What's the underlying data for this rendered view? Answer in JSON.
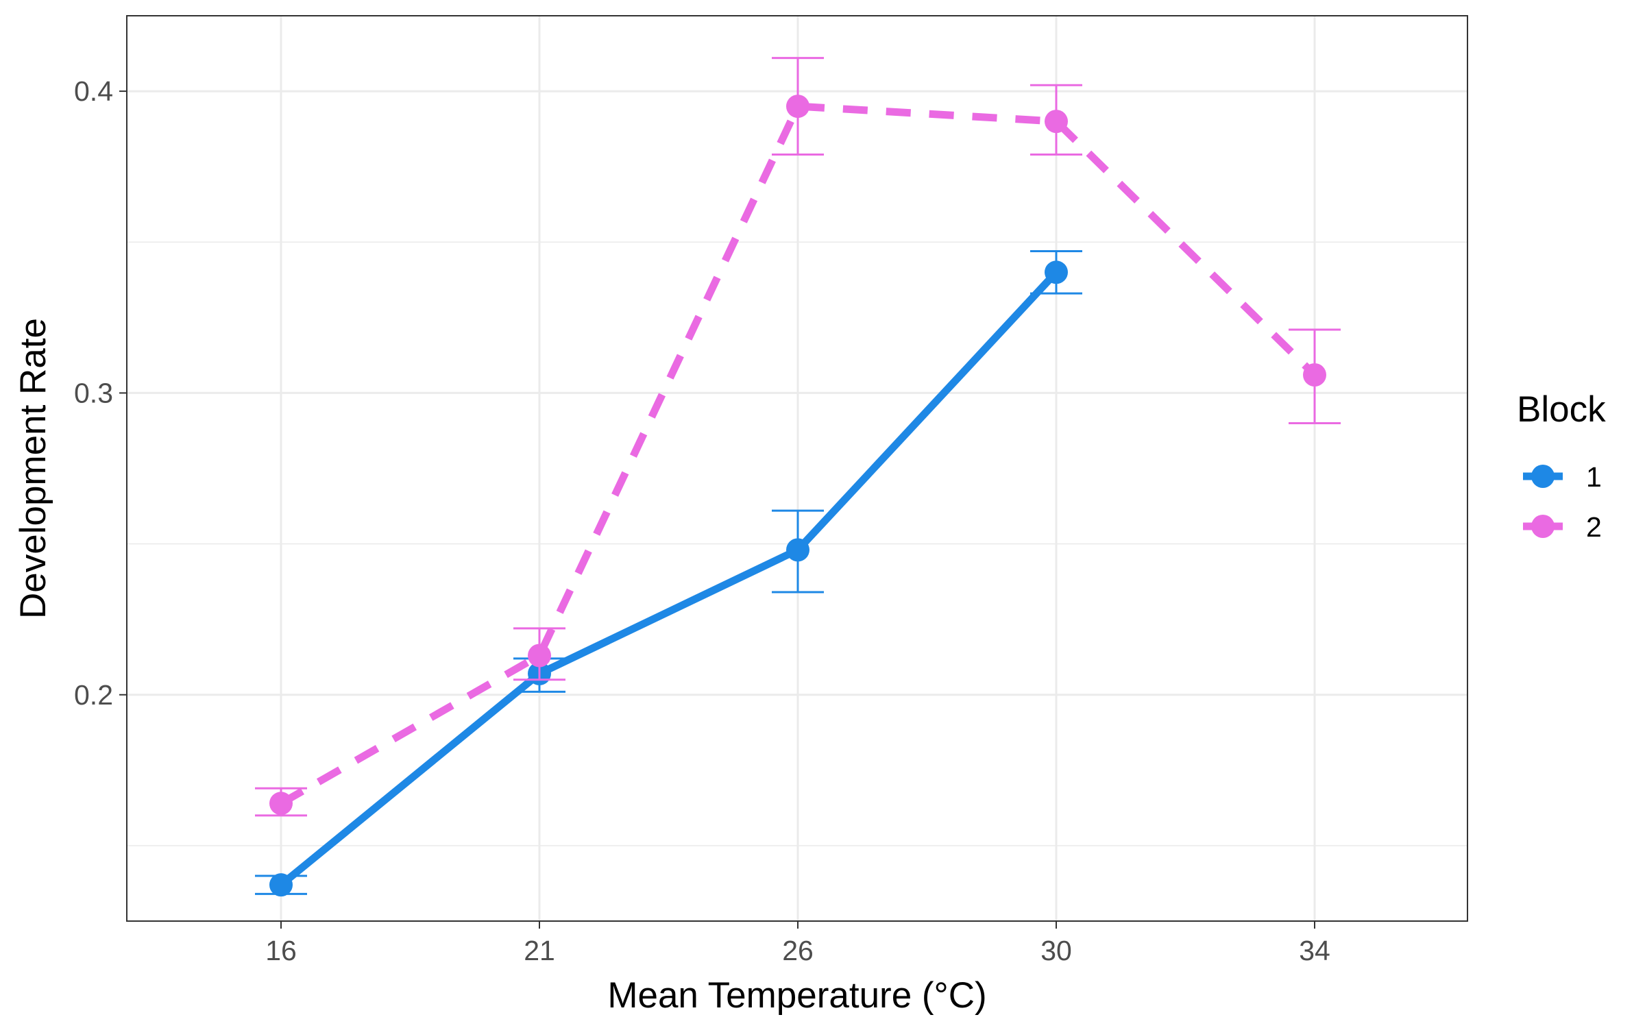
{
  "chart_data": {
    "type": "line",
    "xlabel": "Mean Temperature (°C)",
    "ylabel": "Development Rate",
    "x_categories": [
      "16",
      "21",
      "26",
      "30",
      "34"
    ],
    "ylim": [
      0.125,
      0.425
    ],
    "y_ticks": [
      0.2,
      0.3,
      0.4
    ],
    "y_tick_labels": [
      "0.2",
      "0.3",
      "0.4"
    ],
    "y_minor_ticks": [
      0.15,
      0.25,
      0.35
    ],
    "grid": true,
    "legend": {
      "title": "Block",
      "position": "right"
    },
    "series": [
      {
        "name": "1",
        "color": "#1e88e5",
        "linestyle": "solid",
        "points": [
          {
            "x": "16",
            "y": 0.137,
            "ymin": 0.134,
            "ymax": 0.14
          },
          {
            "x": "21",
            "y": 0.207,
            "ymin": 0.201,
            "ymax": 0.212
          },
          {
            "x": "26",
            "y": 0.248,
            "ymin": 0.234,
            "ymax": 0.261
          },
          {
            "x": "30",
            "y": 0.34,
            "ymin": 0.333,
            "ymax": 0.347
          }
        ]
      },
      {
        "name": "2",
        "color": "#ea6ae2",
        "linestyle": "dashed",
        "points": [
          {
            "x": "16",
            "y": 0.164,
            "ymin": 0.16,
            "ymax": 0.169
          },
          {
            "x": "21",
            "y": 0.213,
            "ymin": 0.205,
            "ymax": 0.222
          },
          {
            "x": "26",
            "y": 0.395,
            "ymin": 0.379,
            "ymax": 0.411
          },
          {
            "x": "30",
            "y": 0.39,
            "ymin": 0.379,
            "ymax": 0.402
          },
          {
            "x": "34",
            "y": 0.306,
            "ymin": 0.29,
            "ymax": 0.321
          }
        ]
      }
    ]
  }
}
